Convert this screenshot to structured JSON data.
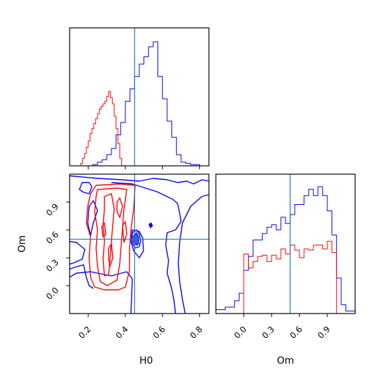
{
  "chart_data": [
    {
      "type": "histogram",
      "panel": "top-left",
      "parameter": "H0",
      "truth": 0.45,
      "xlim": [
        0.1,
        0.85
      ],
      "series": [
        {
          "color": "#0000ff",
          "bins": [
            0.1,
            0.125,
            0.15,
            0.175,
            0.2,
            0.225,
            0.25,
            0.275,
            0.3,
            0.325,
            0.35,
            0.375,
            0.4,
            0.425,
            0.45,
            0.475,
            0.5,
            0.525,
            0.55,
            0.575,
            0.6,
            0.625,
            0.65,
            0.675,
            0.7,
            0.725,
            0.75,
            0.775,
            0.8,
            0.825,
            0.85
          ],
          "counts": [
            0,
            0,
            0,
            0,
            0,
            0.01,
            0.03,
            0.05,
            0.09,
            0.14,
            0.25,
            0.35,
            0.52,
            0.62,
            0.72,
            0.82,
            0.88,
            0.96,
            1.0,
            0.72,
            0.54,
            0.36,
            0.23,
            0.09,
            0.03,
            0.02,
            0.01,
            0.01,
            0,
            0
          ]
        },
        {
          "color": "#ff0000",
          "bins": [
            0.16,
            0.17,
            0.18,
            0.19,
            0.2,
            0.21,
            0.22,
            0.23,
            0.24,
            0.25,
            0.26,
            0.27,
            0.28,
            0.29,
            0.3,
            0.31,
            0.32,
            0.33,
            0.34,
            0.35,
            0.36,
            0.37,
            0.38
          ],
          "counts": [
            0.02,
            0.06,
            0.1,
            0.15,
            0.2,
            0.26,
            0.3,
            0.34,
            0.38,
            0.42,
            0.46,
            0.48,
            0.5,
            0.52,
            0.56,
            0.6,
            0.55,
            0.5,
            0.4,
            0.3,
            0.18,
            0.06
          ]
        }
      ]
    },
    {
      "type": "contour",
      "panel": "bottom-left",
      "xlabel": "H0",
      "ylabel": "Om",
      "xlim": [
        0.1,
        0.85
      ],
      "ylim": [
        -0.3,
        1.2
      ],
      "xticks": [
        "0.2",
        "0.4",
        "0.6",
        "0.8"
      ],
      "yticks": [
        "0.0",
        "0.3",
        "0.6",
        "0.9"
      ],
      "truth": {
        "H0": 0.45,
        "Om": 0.5
      }
    },
    {
      "type": "histogram",
      "panel": "bottom-right",
      "parameter": "Om",
      "xlabel": "Om",
      "truth": 0.5,
      "xlim": [
        -0.3,
        1.2
      ],
      "xticks": [
        "0.0",
        "0.3",
        "0.6",
        "0.9"
      ],
      "series": [
        {
          "color": "#0000ff",
          "bins": [
            -0.3,
            -0.2,
            -0.1,
            -0.05,
            0.0,
            0.05,
            0.1,
            0.15,
            0.2,
            0.25,
            0.3,
            0.35,
            0.4,
            0.45,
            0.5,
            0.55,
            0.6,
            0.65,
            0.7,
            0.75,
            0.8,
            0.85,
            0.9,
            0.95,
            1.0,
            1.05,
            1.1,
            1.2
          ],
          "counts": [
            0.03,
            0.05,
            0.1,
            0.16,
            0.34,
            0.45,
            0.58,
            0.58,
            0.63,
            0.68,
            0.7,
            0.66,
            0.76,
            0.71,
            0.78,
            0.86,
            0.86,
            0.93,
            0.98,
            0.93,
            1.0,
            0.93,
            0.81,
            0.62,
            0.28,
            0.07,
            0.02
          ]
        },
        {
          "color": "#ff0000",
          "bins": [
            0.0,
            0.05,
            0.1,
            0.15,
            0.2,
            0.25,
            0.3,
            0.35,
            0.4,
            0.45,
            0.5,
            0.55,
            0.6,
            0.65,
            0.7,
            0.75,
            0.8,
            0.85,
            0.9,
            0.95,
            1.0
          ],
          "counts": [
            0.47,
            0.36,
            0.41,
            0.45,
            0.46,
            0.41,
            0.46,
            0.43,
            0.51,
            0.47,
            0.54,
            0.5,
            0.44,
            0.51,
            0.5,
            0.54,
            0.54,
            0.51,
            0.57,
            0.48
          ]
        }
      ]
    }
  ]
}
